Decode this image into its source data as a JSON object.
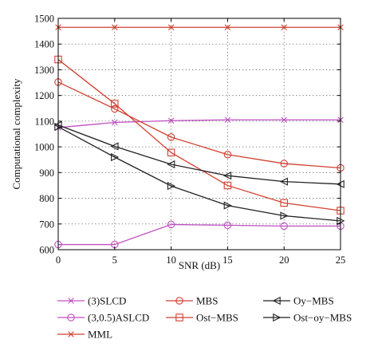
{
  "chart_data": {
    "type": "line",
    "xlabel": "SNR (dB)",
    "ylabel": "Computational complexity",
    "xlim": [
      0,
      25
    ],
    "ylim": [
      600,
      1500
    ],
    "x_ticks": [
      0,
      5,
      10,
      15,
      20,
      25
    ],
    "y_ticks": [
      600,
      700,
      800,
      900,
      1000,
      1100,
      1200,
      1300,
      1400,
      1500
    ],
    "grid": true,
    "legend_position": "below",
    "x": [
      0,
      5,
      10,
      15,
      20,
      25
    ],
    "series": [
      {
        "name": "(3)SLCD",
        "color": "#c050c0",
        "marker": "x",
        "values": [
          1075,
          1095,
          1102,
          1105,
          1105,
          1105
        ]
      },
      {
        "name": "(3,0.5)ASLCD",
        "color": "#c050c0",
        "marker": "circle",
        "values": [
          620,
          620,
          698,
          695,
          692,
          692
        ]
      },
      {
        "name": "MML",
        "color": "#d04030",
        "marker": "x",
        "values": [
          1465,
          1465,
          1465,
          1465,
          1465,
          1465
        ]
      },
      {
        "name": "MBS",
        "color": "#d04030",
        "marker": "circle",
        "values": [
          1252,
          1148,
          1038,
          970,
          935,
          918
        ]
      },
      {
        "name": "Ost−MBS",
        "color": "#d04030",
        "marker": "square",
        "values": [
          1340,
          1168,
          978,
          850,
          782,
          752
        ]
      },
      {
        "name": "Oy−MBS",
        "color": "#222222",
        "marker": "triangle-left",
        "values": [
          1085,
          1002,
          932,
          888,
          865,
          855
        ]
      },
      {
        "name": "Ost−oy−MBS",
        "color": "#222222",
        "marker": "triangle-right",
        "values": [
          1078,
          960,
          848,
          772,
          732,
          712
        ]
      }
    ]
  }
}
